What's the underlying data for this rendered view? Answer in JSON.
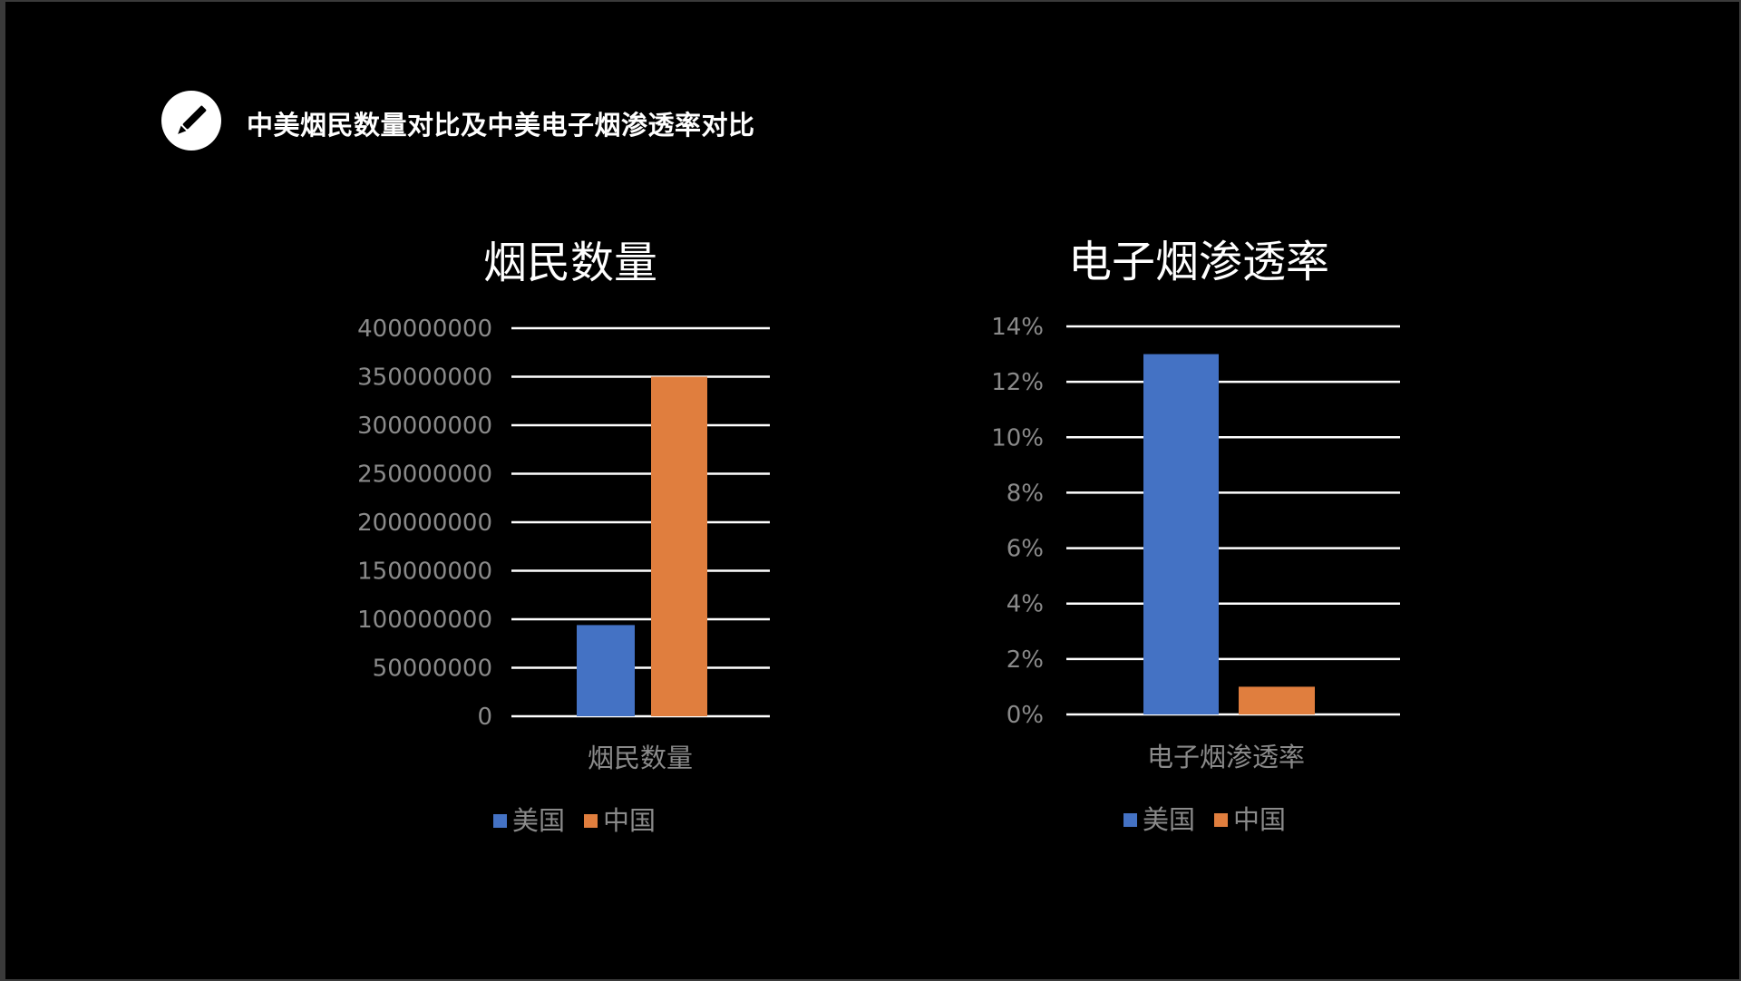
{
  "header": {
    "title": "中美烟民数量对比及中美电子烟渗透率对比",
    "icon": "pencil-icon"
  },
  "colors": {
    "background": "#000000",
    "usa": "#4472C4",
    "china": "#E07E3E",
    "grid": "#ffffff",
    "axis_text": "#8a8a8a"
  },
  "chart_data": [
    {
      "type": "bar",
      "title": "烟民数量",
      "categories": [
        "烟民数量"
      ],
      "series": [
        {
          "name": "美国",
          "values": [
            94000000
          ]
        },
        {
          "name": "中国",
          "values": [
            350000000
          ]
        }
      ],
      "ylim": [
        0,
        400000000
      ],
      "yticks": [
        "0",
        "50000000",
        "100000000",
        "150000000",
        "200000000",
        "250000000",
        "300000000",
        "350000000",
        "400000000"
      ],
      "grid": true,
      "legend": "bottom"
    },
    {
      "type": "bar",
      "title": "电子烟渗透率",
      "categories": [
        "电子烟渗透率"
      ],
      "series": [
        {
          "name": "美国",
          "values": [
            0.13
          ]
        },
        {
          "name": "中国",
          "values": [
            0.01
          ]
        }
      ],
      "ylim": [
        0,
        0.14
      ],
      "yticks": [
        "0%",
        "2%",
        "4%",
        "6%",
        "8%",
        "10%",
        "12%",
        "14%"
      ],
      "grid": true,
      "legend": "bottom"
    }
  ]
}
